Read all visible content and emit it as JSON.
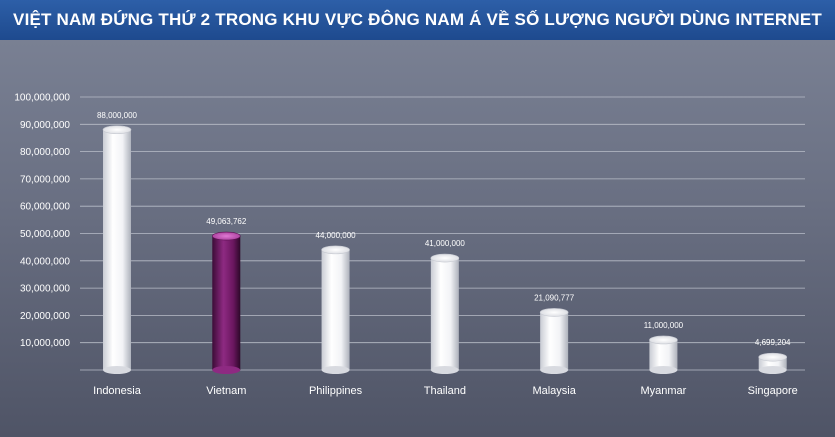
{
  "chart_data": {
    "type": "bar",
    "title": "VIỆT NAM ĐỨNG THỨ 2 TRONG KHU VỰC ĐÔNG NAM Á VỀ SỐ LƯỢNG NGƯỜI DÙNG INTERNET",
    "categories": [
      "Indonesia",
      "Vietnam",
      "Philippines",
      "Thailand",
      "Malaysia",
      "Myanmar",
      "Singapore"
    ],
    "values": [
      88000000,
      49063762,
      44000000,
      41000000,
      21090777,
      11000000,
      4699204
    ],
    "data_labels": [
      "88,000,000",
      "49,063,762",
      "44,000,000",
      "41,000,000",
      "21,090,777",
      "11,000,000",
      "4,699,204"
    ],
    "yticks": [
      "10,000,000",
      "20,000,000",
      "30,000,000",
      "40,000,000",
      "50,000,000",
      "60,000,000",
      "70,000,000",
      "80,000,000",
      "90,000,000",
      "100,000,000"
    ],
    "ytick_values": [
      10000000,
      20000000,
      30000000,
      40000000,
      50000000,
      60000000,
      70000000,
      80000000,
      90000000,
      100000000
    ],
    "ylim": [
      0,
      100000000
    ],
    "xlabel": "",
    "ylabel": "",
    "grid": true,
    "highlight_category": "Vietnam",
    "colors": {
      "bar": "#ffffff",
      "highlight": "#7a1a6e",
      "grid": "#b9bdc8",
      "header": "#2455a0"
    }
  }
}
